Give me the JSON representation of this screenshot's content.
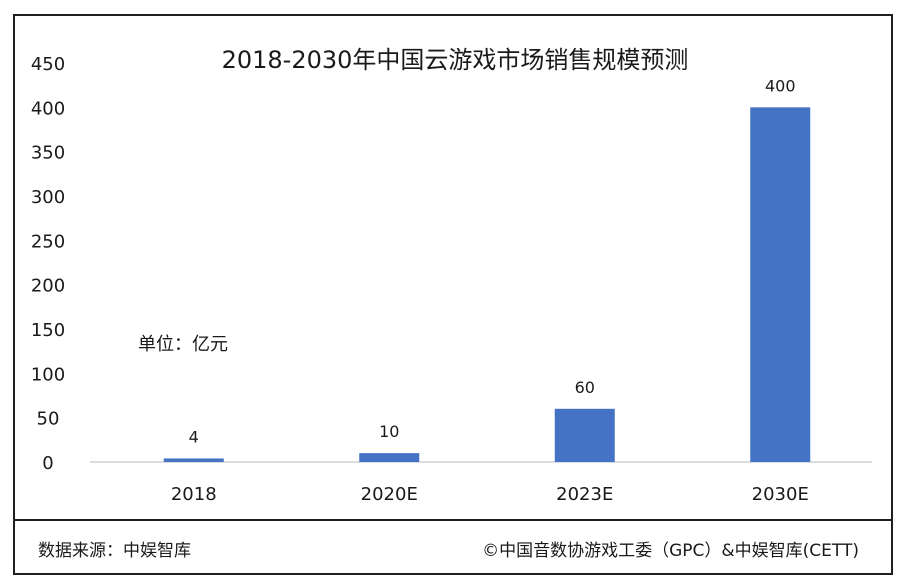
{
  "chart_data": {
    "type": "bar",
    "title": "2018-2030年中国云游戏市场销售规模预测",
    "categories": [
      "2018",
      "2020E",
      "2023E",
      "2030E"
    ],
    "values": [
      4,
      10,
      60,
      400
    ],
    "data_labels": [
      "4",
      "10",
      "60",
      "400"
    ],
    "yticks": [
      "0",
      "50",
      "100",
      "150",
      "200",
      "250",
      "300",
      "350",
      "400",
      "450"
    ],
    "ylim": [
      0,
      450
    ],
    "grid": false,
    "bar_color": "#4472C4",
    "unit_label": "单位：亿元"
  },
  "footer": {
    "source": "数据来源：中娱智库",
    "copyright": "©中国音数协游戏工委（GPC）&中娱智库(CETT)"
  }
}
